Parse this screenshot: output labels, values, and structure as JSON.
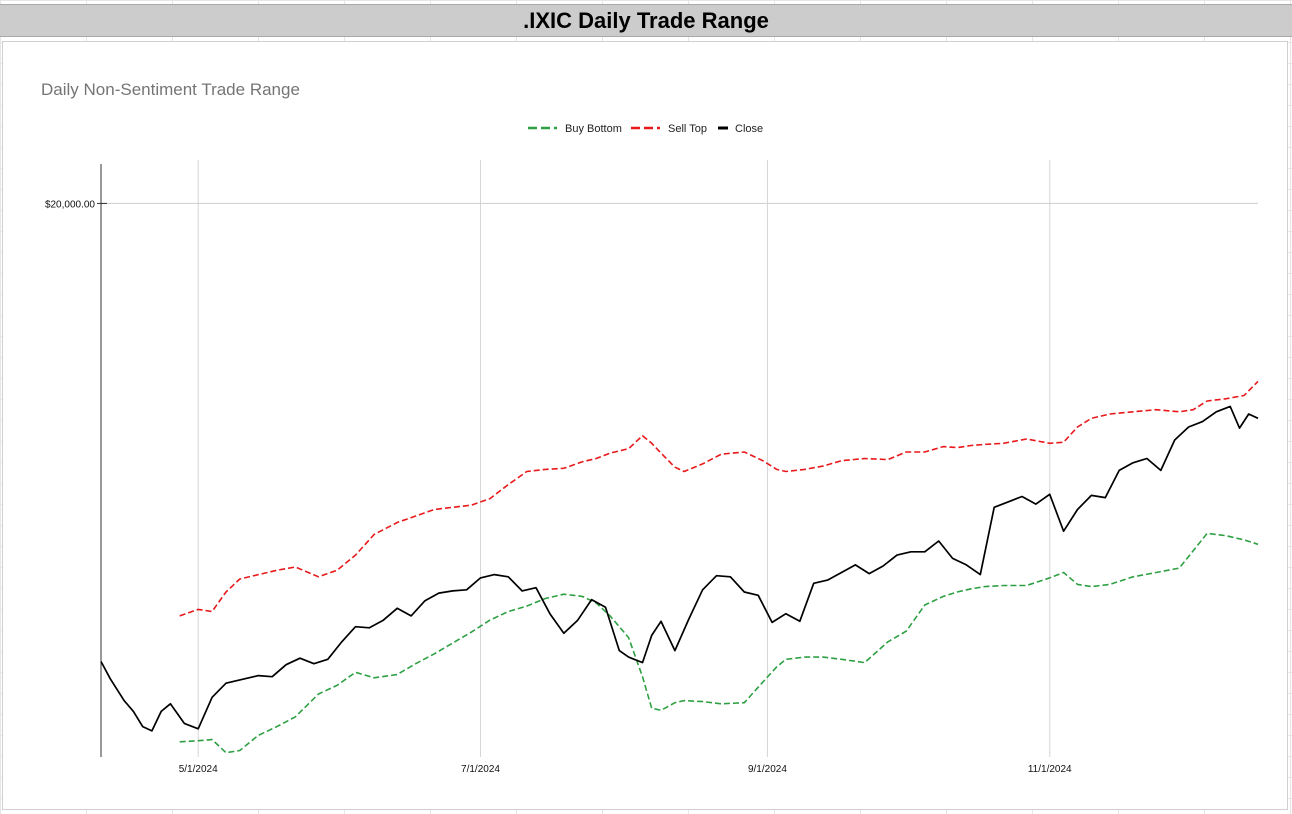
{
  "sheet": {
    "title": ".IXIC Daily Trade Range"
  },
  "chart_data": {
    "type": "line",
    "title": "Daily Non-Sentiment Trade Range",
    "x_ticks": [
      "5/1/2024",
      "7/1/2024",
      "9/1/2024",
      "11/1/2024"
    ],
    "y_ticks": [
      "$20,000.00"
    ],
    "xlim": [
      "2024-04-10",
      "2024-12-16"
    ],
    "ylim": [
      14900,
      20400
    ],
    "grid": true,
    "legend_position": "top",
    "series": [
      {
        "name": "Buy Bottom",
        "color": "#2ea043",
        "dash": true,
        "x": [
          "2024-04-27",
          "2024-05-01",
          "2024-05-04",
          "2024-05-07",
          "2024-05-10",
          "2024-05-14",
          "2024-05-18",
          "2024-05-22",
          "2024-05-27",
          "2024-05-31",
          "2024-06-04",
          "2024-06-08",
          "2024-06-13",
          "2024-06-17",
          "2024-06-21",
          "2024-06-25",
          "2024-06-29",
          "2024-07-03",
          "2024-07-07",
          "2024-07-11",
          "2024-07-15",
          "2024-07-19",
          "2024-07-23",
          "2024-07-26",
          "2024-07-29",
          "2024-08-02",
          "2024-08-05",
          "2024-08-07",
          "2024-08-09",
          "2024-08-12",
          "2024-08-14",
          "2024-08-18",
          "2024-08-22",
          "2024-08-27",
          "2024-08-31",
          "2024-09-03",
          "2024-09-05",
          "2024-09-09",
          "2024-09-13",
          "2024-09-17",
          "2024-09-22",
          "2024-09-27",
          "2024-10-01",
          "2024-10-05",
          "2024-10-09",
          "2024-10-12",
          "2024-10-15",
          "2024-10-18",
          "2024-10-22",
          "2024-10-27",
          "2024-11-01",
          "2024-11-04",
          "2024-11-07",
          "2024-11-10",
          "2024-11-14",
          "2024-11-19",
          "2024-11-24",
          "2024-11-29",
          "2024-12-02",
          "2024-12-05",
          "2024-12-09",
          "2024-12-13",
          "2024-12-16"
        ],
        "y": [
          15040,
          15050,
          15060,
          14940,
          14960,
          15100,
          15180,
          15270,
          15480,
          15560,
          15680,
          15630,
          15660,
          15760,
          15850,
          15950,
          16050,
          16160,
          16240,
          16290,
          16360,
          16400,
          16380,
          16320,
          16200,
          16000,
          15640,
          15350,
          15330,
          15400,
          15420,
          15410,
          15390,
          15400,
          15590,
          15730,
          15800,
          15820,
          15820,
          15800,
          15770,
          15960,
          16060,
          16300,
          16380,
          16420,
          16450,
          16470,
          16480,
          16480,
          16550,
          16600,
          16490,
          16470,
          16490,
          16560,
          16600,
          16640,
          16800,
          16960,
          16940,
          16900,
          16860
        ]
      },
      {
        "name": "Sell Top",
        "color": "#e8191b",
        "dash": true,
        "x": [
          "2024-04-27",
          "2024-05-01",
          "2024-05-04",
          "2024-05-07",
          "2024-05-10",
          "2024-05-14",
          "2024-05-18",
          "2024-05-22",
          "2024-05-27",
          "2024-05-31",
          "2024-06-04",
          "2024-06-08",
          "2024-06-13",
          "2024-06-17",
          "2024-06-21",
          "2024-06-25",
          "2024-06-29",
          "2024-07-03",
          "2024-07-07",
          "2024-07-11",
          "2024-07-15",
          "2024-07-19",
          "2024-07-23",
          "2024-07-26",
          "2024-07-29",
          "2024-08-02",
          "2024-08-05",
          "2024-08-07",
          "2024-08-09",
          "2024-08-12",
          "2024-08-14",
          "2024-08-18",
          "2024-08-22",
          "2024-08-27",
          "2024-08-31",
          "2024-09-03",
          "2024-09-05",
          "2024-09-09",
          "2024-09-13",
          "2024-09-17",
          "2024-09-22",
          "2024-09-27",
          "2024-10-01",
          "2024-10-05",
          "2024-10-09",
          "2024-10-12",
          "2024-10-15",
          "2024-10-18",
          "2024-10-22",
          "2024-10-27",
          "2024-11-01",
          "2024-11-04",
          "2024-11-07",
          "2024-11-10",
          "2024-11-14",
          "2024-11-19",
          "2024-11-24",
          "2024-11-29",
          "2024-12-02",
          "2024-12-05",
          "2024-12-09",
          "2024-12-13",
          "2024-12-16"
        ],
        "y": [
          16200,
          16260,
          16240,
          16420,
          16540,
          16580,
          16620,
          16650,
          16560,
          16620,
          16760,
          16950,
          17060,
          17120,
          17180,
          17200,
          17220,
          17280,
          17410,
          17530,
          17550,
          17560,
          17620,
          17650,
          17700,
          17740,
          17860,
          17790,
          17700,
          17570,
          17530,
          17600,
          17690,
          17710,
          17630,
          17550,
          17530,
          17550,
          17580,
          17630,
          17650,
          17640,
          17710,
          17710,
          17760,
          17750,
          17770,
          17780,
          17790,
          17830,
          17790,
          17800,
          17940,
          18020,
          18060,
          18080,
          18100,
          18080,
          18100,
          18180,
          18200,
          18230,
          18360
        ]
      },
      {
        "name": "Close",
        "color": "#000000",
        "dash": false,
        "x": [
          "2024-04-10",
          "2024-04-12",
          "2024-04-15",
          "2024-04-17",
          "2024-04-19",
          "2024-04-21",
          "2024-04-23",
          "2024-04-25",
          "2024-04-28",
          "2024-05-01",
          "2024-05-04",
          "2024-05-07",
          "2024-05-10",
          "2024-05-14",
          "2024-05-17",
          "2024-05-20",
          "2024-05-23",
          "2024-05-26",
          "2024-05-29",
          "2024-06-01",
          "2024-06-04",
          "2024-06-07",
          "2024-06-10",
          "2024-06-13",
          "2024-06-16",
          "2024-06-19",
          "2024-06-22",
          "2024-06-25",
          "2024-06-28",
          "2024-07-01",
          "2024-07-04",
          "2024-07-07",
          "2024-07-10",
          "2024-07-13",
          "2024-07-16",
          "2024-07-19",
          "2024-07-22",
          "2024-07-25",
          "2024-07-28",
          "2024-07-31",
          "2024-08-02",
          "2024-08-05",
          "2024-08-07",
          "2024-08-09",
          "2024-08-12",
          "2024-08-15",
          "2024-08-18",
          "2024-08-21",
          "2024-08-24",
          "2024-08-27",
          "2024-08-30",
          "2024-09-02",
          "2024-09-05",
          "2024-09-08",
          "2024-09-11",
          "2024-09-14",
          "2024-09-17",
          "2024-09-20",
          "2024-09-23",
          "2024-09-26",
          "2024-09-29",
          "2024-10-02",
          "2024-10-05",
          "2024-10-08",
          "2024-10-11",
          "2024-10-14",
          "2024-10-17",
          "2024-10-20",
          "2024-10-23",
          "2024-10-26",
          "2024-10-29",
          "2024-11-01",
          "2024-11-04",
          "2024-11-07",
          "2024-11-10",
          "2024-11-13",
          "2024-11-16",
          "2024-11-19",
          "2024-11-22",
          "2024-11-25",
          "2024-11-28",
          "2024-12-01",
          "2024-12-04",
          "2024-12-07",
          "2024-12-10",
          "2024-12-12",
          "2024-12-14",
          "2024-12-16"
        ],
        "y": [
          15780,
          15620,
          15420,
          15320,
          15180,
          15140,
          15320,
          15390,
          15210,
          15160,
          15450,
          15580,
          15610,
          15650,
          15640,
          15750,
          15810,
          15760,
          15800,
          15960,
          16100,
          16090,
          16160,
          16270,
          16200,
          16340,
          16410,
          16430,
          16440,
          16550,
          16580,
          16560,
          16430,
          16460,
          16220,
          16040,
          16160,
          16350,
          16280,
          15880,
          15820,
          15770,
          16020,
          16150,
          15880,
          16170,
          16440,
          16570,
          16560,
          16420,
          16390,
          16140,
          16220,
          16150,
          16500,
          16530,
          16600,
          16670,
          16590,
          16660,
          16760,
          16790,
          16790,
          16890,
          16730,
          16670,
          16580,
          17200,
          17250,
          17300,
          17230,
          17320,
          16980,
          17180,
          17310,
          17290,
          17540,
          17610,
          17650,
          17540,
          17820,
          17940,
          17990,
          18080,
          18130,
          17930,
          18060,
          18020
        ]
      }
    ]
  }
}
